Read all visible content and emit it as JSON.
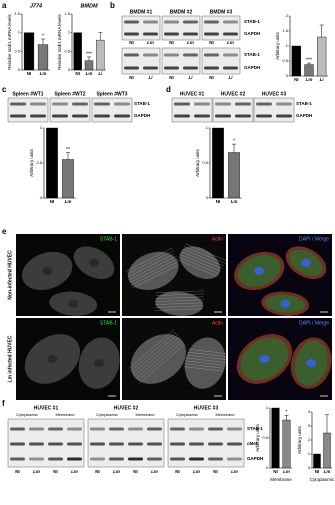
{
  "panel_labels": [
    "a",
    "b",
    "c",
    "d",
    "e",
    "f"
  ],
  "chart_data": [
    {
      "type": "bar",
      "title": "J774",
      "ylabel": "Relative stab1 mRNA levels",
      "categories": [
        "NI",
        "Lm"
      ],
      "values": [
        1,
        0.68
      ],
      "errors": [
        null,
        0.15
      ],
      "colors": [
        "#000000",
        "#777777"
      ],
      "ylim": [
        0,
        1.5
      ],
      "yticks": [
        0,
        0.5,
        1,
        1.5
      ],
      "annotations": [
        {
          "category": "Lm",
          "text": "*"
        }
      ]
    },
    {
      "type": "bar",
      "title": "BMDM",
      "ylabel": "Relative stab1 mRNA levels",
      "categories": [
        "NI",
        "Lm",
        "Li"
      ],
      "values": [
        1,
        0.25,
        0.8
      ],
      "errors": [
        null,
        0.1,
        0.2
      ],
      "colors": [
        "#000000",
        "#777777",
        "#bbbbbb"
      ],
      "ylim": [
        0,
        1.5
      ],
      "yticks": [
        0,
        0.5,
        1,
        1.5
      ],
      "annotations": [
        {
          "category": "Lm",
          "text": "***"
        }
      ]
    },
    {
      "type": "bar",
      "ylabel": "Arbitrary units",
      "categories": [
        "NI",
        "Lm",
        "Li"
      ],
      "values": [
        1,
        0.38,
        1.3
      ],
      "errors": [
        null,
        0.05,
        0.4
      ],
      "colors": [
        "#000000",
        "#777777",
        "#bbbbbb"
      ],
      "ylim": [
        0,
        2
      ],
      "yticks": [
        0,
        0.5,
        1,
        1.5,
        2
      ],
      "annotations": [
        {
          "category": "Lm",
          "text": "***"
        }
      ]
    },
    {
      "type": "bar",
      "ylabel": "Arbitrary units",
      "categories": [
        "NI",
        "Lm"
      ],
      "values": [
        1,
        0.55
      ],
      "errors": [
        null,
        0.1
      ],
      "colors": [
        "#000000",
        "#777777"
      ],
      "ylim": [
        0,
        1
      ],
      "yticks": [
        0,
        0.5,
        1
      ],
      "annotations": [
        {
          "category": "Lm",
          "text": "**"
        }
      ]
    },
    {
      "type": "bar",
      "ylabel": "Arbitrary units",
      "categories": [
        "NI",
        "Lm"
      ],
      "values": [
        1,
        0.65
      ],
      "errors": [
        null,
        0.12
      ],
      "colors": [
        "#000000",
        "#777777"
      ],
      "ylim": [
        0,
        1
      ],
      "yticks": [
        0,
        0.5,
        1
      ],
      "annotations": [
        {
          "category": "Lm",
          "text": "*"
        }
      ]
    },
    {
      "type": "bar",
      "ylabel": "Arbitrary units",
      "xlabel": "Membrane",
      "categories": [
        "NI",
        "Lm"
      ],
      "values": [
        1,
        0.8
      ],
      "errors": [
        null,
        0.08
      ],
      "colors": [
        "#000000",
        "#888888"
      ],
      "ylim": [
        0,
        1
      ],
      "yticks": [
        0,
        0.5,
        1
      ],
      "annotations": [
        {
          "category": "Lm",
          "text": "*"
        }
      ]
    },
    {
      "type": "bar",
      "ylabel": "Arbitrary units",
      "xlabel": "Cytoplasmic",
      "categories": [
        "NI",
        "Lm"
      ],
      "values": [
        1,
        2.5
      ],
      "errors": [
        null,
        1.3
      ],
      "colors": [
        "#000000",
        "#888888"
      ],
      "ylim": [
        0,
        4
      ],
      "yticks": [
        0,
        1,
        2,
        3,
        4
      ]
    }
  ],
  "blots": [
    {
      "groups": [
        "BMDM #1",
        "BMDM #2",
        "BMDM #3"
      ],
      "rows": [
        {
          "lanes": [
            "NI",
            "Lm"
          ],
          "bands": [
            "STAB-1",
            "GAPDH"
          ]
        },
        {
          "lanes": [
            "NI",
            "Li"
          ],
          "bands": [
            "STAB-1",
            "GAPDH"
          ]
        }
      ]
    },
    {
      "groups": [
        "Spleen #WT1",
        "Spleen #WT2",
        "Spleen #WT3"
      ],
      "rows": [
        {
          "bands": [
            "STAB-1",
            "GAPDH"
          ]
        }
      ]
    },
    {
      "groups": [
        "HUVEC #1",
        "HUVEC #2",
        "HUVEC #3"
      ],
      "rows": [
        {
          "bands": [
            "STAB-1",
            "GAPDH"
          ]
        }
      ]
    },
    {
      "groups": [
        "HUVEC #1",
        "HUVEC #2",
        "HUVEC #3"
      ],
      "fractions": [
        "Cytoplasmic",
        "Membrane"
      ],
      "rows": [
        {
          "lanes": [
            "NI",
            "Lm",
            "NI",
            "Lm"
          ],
          "bands": [
            "STAB-1",
            "cMet",
            "GAPDH"
          ]
        }
      ]
    }
  ],
  "micrographs": {
    "channels": [
      "STAB-1",
      "Actin",
      "DAPI / Merge"
    ],
    "rows": [
      "Non-infected HUVEC",
      "Lm infected HUVEC"
    ]
  }
}
